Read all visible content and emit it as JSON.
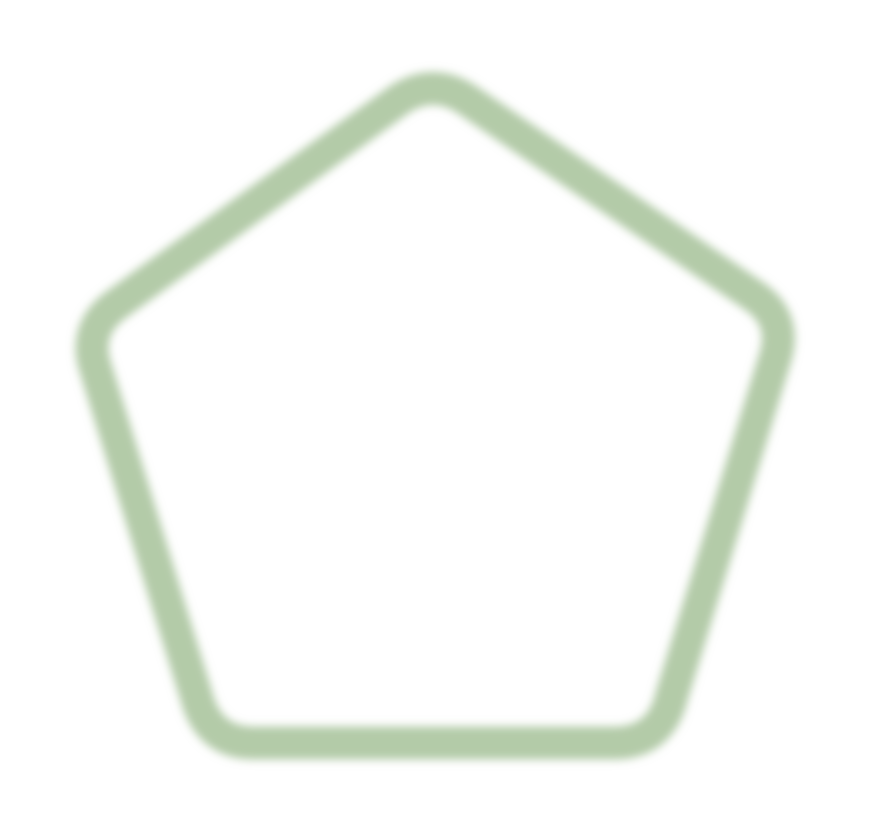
{
  "icon": {
    "name": "pentagon-icon",
    "shape": "pentagon",
    "style": "outline",
    "stroke_color": "#b3cba8",
    "fill_color": "none",
    "blurred": true
  }
}
